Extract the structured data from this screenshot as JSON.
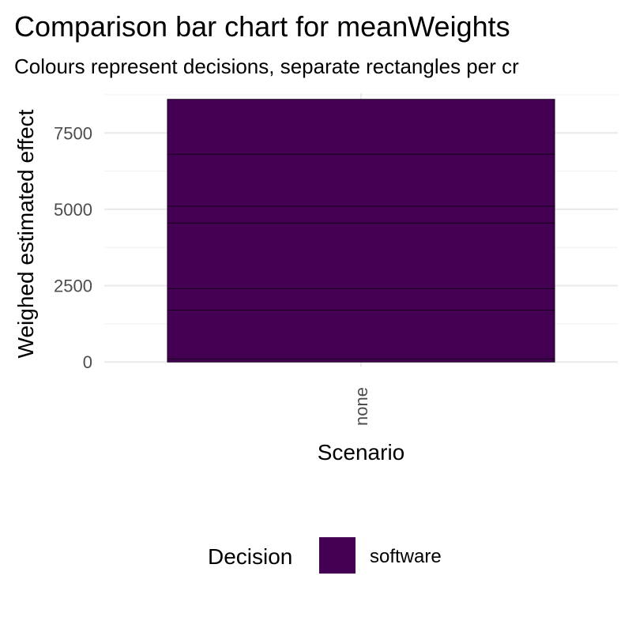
{
  "chart_data": {
    "type": "bar",
    "stacked": true,
    "title": "Comparison bar chart for meanWeights",
    "subtitle": "Colours represent decisions, separate rectangles per cr",
    "xlabel": "Scenario",
    "ylabel": "Weighed estimated effect",
    "categories": [
      "none"
    ],
    "y_ticks": [
      0,
      2500,
      5000,
      7500
    ],
    "ylim": [
      -150,
      8800
    ],
    "grid": true,
    "legend": {
      "title": "Decision",
      "position": "bottom",
      "entries": [
        {
          "label": "software",
          "color": "#440154"
        }
      ]
    },
    "segments": [
      {
        "category": "none",
        "decision": "software",
        "from": 0,
        "to": 100
      },
      {
        "category": "none",
        "decision": "software",
        "from": 100,
        "to": 1700
      },
      {
        "category": "none",
        "decision": "software",
        "from": 1700,
        "to": 2400
      },
      {
        "category": "none",
        "decision": "software",
        "from": 2400,
        "to": 4550
      },
      {
        "category": "none",
        "decision": "software",
        "from": 4550,
        "to": 5100
      },
      {
        "category": "none",
        "decision": "software",
        "from": 5100,
        "to": 6800
      },
      {
        "category": "none",
        "decision": "software",
        "from": 6800,
        "to": 8600
      }
    ],
    "total": 8600,
    "colors": {
      "bar_fill": "#440154",
      "bar_outline": "#1a0020",
      "grid_major": "#ebebeb",
      "grid_minor": "#f3f3f3",
      "tick_text": "#4d4d4d"
    }
  }
}
